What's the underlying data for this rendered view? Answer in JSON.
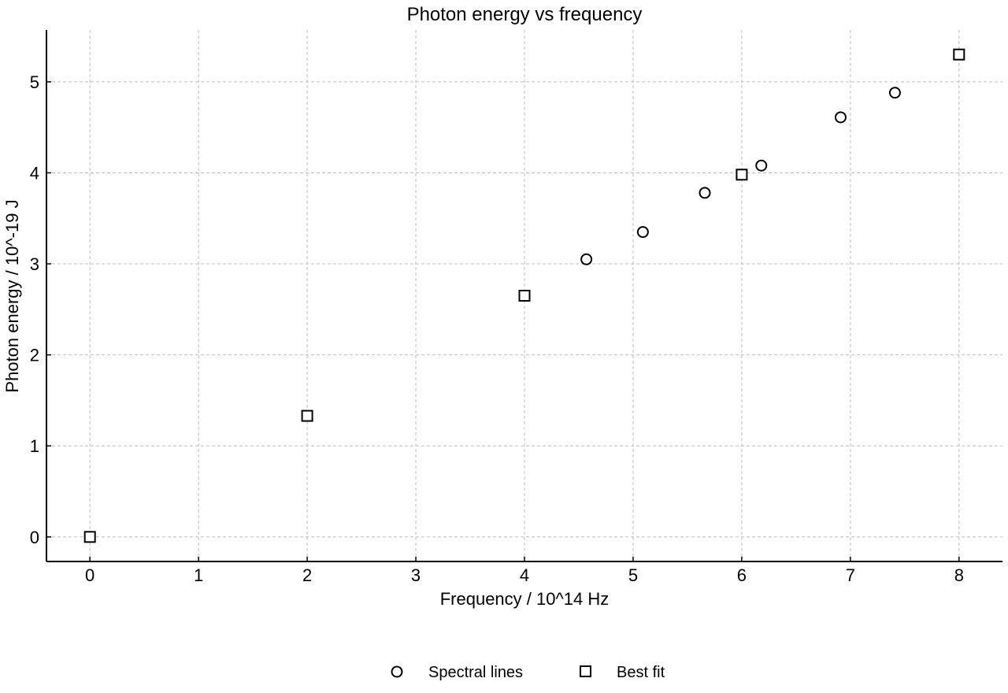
{
  "chart_data": {
    "type": "scatter",
    "title": "Photon energy vs frequency",
    "xlabel": "Frequency / 10^14 Hz",
    "ylabel": "Photon energy / 10^-19 J",
    "xlim": [
      -0.4,
      8.4
    ],
    "ylim": [
      -0.27,
      5.57
    ],
    "xticks": [
      0,
      1,
      2,
      3,
      4,
      5,
      6,
      7,
      8
    ],
    "yticks": [
      0,
      1,
      2,
      3,
      4,
      5
    ],
    "grid": true,
    "legend_position": "bottom-center",
    "series": [
      {
        "name": "Spectral lines",
        "marker": "circle",
        "color": "#000000",
        "points": [
          {
            "x": 4.57,
            "y": 3.05
          },
          {
            "x": 5.09,
            "y": 3.35
          },
          {
            "x": 5.66,
            "y": 3.78
          },
          {
            "x": 6.18,
            "y": 4.08
          },
          {
            "x": 6.91,
            "y": 4.61
          },
          {
            "x": 7.41,
            "y": 4.88
          }
        ]
      },
      {
        "name": "Best fit",
        "marker": "square",
        "color": "#000000",
        "points": [
          {
            "x": 0,
            "y": 0.0
          },
          {
            "x": 2,
            "y": 1.33
          },
          {
            "x": 4,
            "y": 2.65
          },
          {
            "x": 6,
            "y": 3.98
          },
          {
            "x": 8,
            "y": 5.3
          }
        ]
      }
    ]
  }
}
